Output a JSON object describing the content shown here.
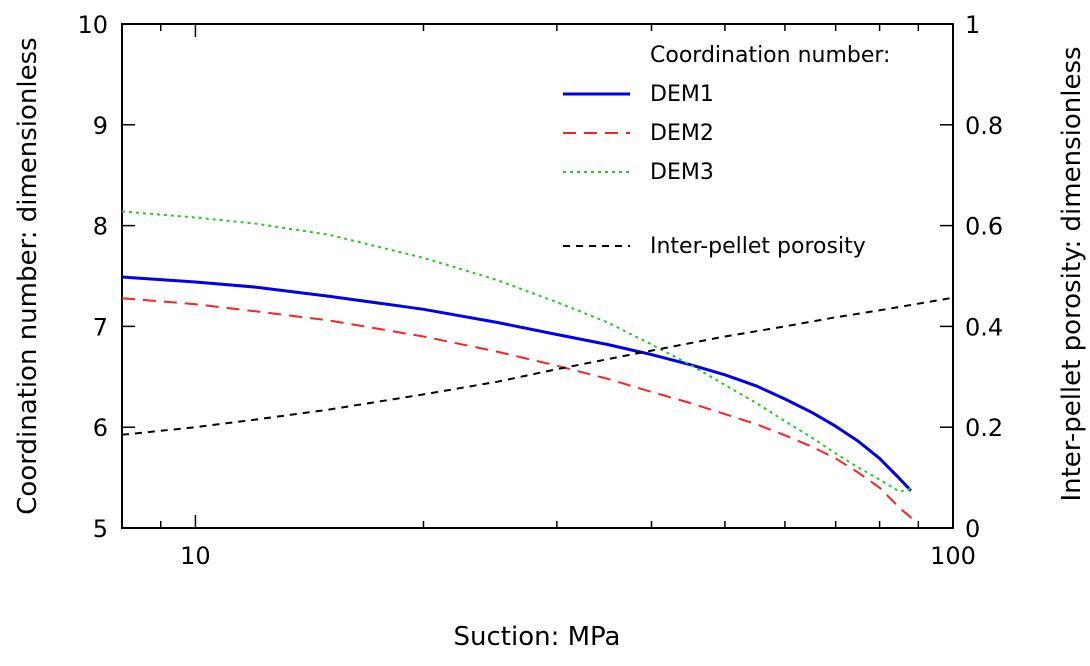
{
  "chart_data": {
    "type": "line",
    "xlabel": "Suction: MPa",
    "ylabel_left": "Coordination number: dimensionless",
    "ylabel_right": "Inter-pellet porosity: dimensionless",
    "x_scale": "log",
    "xlim": [
      8,
      100
    ],
    "ylim_left": [
      5,
      10
    ],
    "ylim_right": [
      0,
      1
    ],
    "x_ticks": [
      10,
      100
    ],
    "x_tick_labels": [
      "10",
      "100"
    ],
    "y_left_ticks": [
      5,
      6,
      7,
      8,
      9,
      10
    ],
    "y_left_tick_labels": [
      "5",
      "6",
      "7",
      "8",
      "9",
      "10"
    ],
    "y_right_ticks": [
      0,
      0.2,
      0.4,
      0.6,
      0.8,
      1
    ],
    "y_right_tick_labels": [
      "0",
      "0.2",
      "0.4",
      "0.6",
      "0.8",
      "1"
    ],
    "grid": false,
    "legend_title": "Coordination number:",
    "legend_position": "top-right",
    "series": [
      {
        "name": "DEM1",
        "axis": "left",
        "color": "#0000ee",
        "style": "solid",
        "x": [
          8,
          10,
          12,
          15,
          20,
          25,
          30,
          35,
          40,
          45,
          50,
          55,
          60,
          65,
          70,
          75,
          80,
          85,
          88
        ],
        "y": [
          7.49,
          7.44,
          7.39,
          7.3,
          7.17,
          7.04,
          6.92,
          6.82,
          6.72,
          6.62,
          6.52,
          6.41,
          6.28,
          6.15,
          6.01,
          5.86,
          5.69,
          5.49,
          5.37
        ]
      },
      {
        "name": "DEM2",
        "axis": "left",
        "color": "#ff2020",
        "style": "dashed",
        "x": [
          8,
          10,
          12,
          15,
          20,
          25,
          30,
          35,
          40,
          45,
          50,
          55,
          60,
          65,
          70,
          75,
          80,
          85,
          90
        ],
        "y": [
          7.28,
          7.22,
          7.15,
          7.06,
          6.9,
          6.75,
          6.61,
          6.48,
          6.35,
          6.24,
          6.13,
          6.03,
          5.92,
          5.81,
          5.69,
          5.55,
          5.4,
          5.2,
          5.04
        ]
      },
      {
        "name": "DEM3",
        "axis": "left",
        "color": "#22cc22",
        "style": "dotted",
        "x": [
          8,
          10,
          12,
          15,
          20,
          25,
          30,
          35,
          40,
          45,
          50,
          55,
          60,
          65,
          70,
          75,
          80,
          85,
          88
        ],
        "y": [
          8.14,
          8.08,
          8.02,
          7.91,
          7.68,
          7.46,
          7.24,
          7.04,
          6.82,
          6.62,
          6.42,
          6.24,
          6.06,
          5.9,
          5.74,
          5.6,
          5.48,
          5.36,
          5.39
        ]
      },
      {
        "name": "Inter-pellet porosity",
        "axis": "right",
        "color": "#000000",
        "style": "dashed",
        "x": [
          8,
          10,
          12,
          15,
          20,
          25,
          30,
          35,
          40,
          50,
          60,
          70,
          80,
          90,
          100
        ],
        "y": [
          0.185,
          0.2,
          0.215,
          0.235,
          0.265,
          0.29,
          0.315,
          0.335,
          0.352,
          0.38,
          0.4,
          0.418,
          0.432,
          0.445,
          0.457
        ]
      }
    ]
  }
}
